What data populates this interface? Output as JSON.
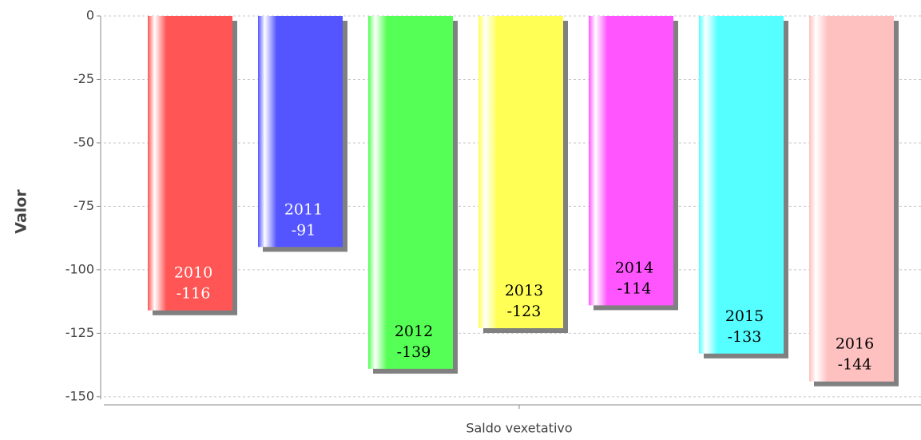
{
  "chart_data": {
    "type": "bar",
    "categories": [
      "Saldo vexetativo"
    ],
    "y_label": "Valor",
    "series": [
      {
        "name": "2010",
        "color": "#ff5555",
        "label_color": "#ffffff",
        "values": [
          -116
        ]
      },
      {
        "name": "2011",
        "color": "#5555ff",
        "label_color": "#ffffff",
        "values": [
          -91
        ]
      },
      {
        "name": "2012",
        "color": "#55ff55",
        "label_color": "#000000",
        "values": [
          -139
        ]
      },
      {
        "name": "2013",
        "color": "#ffff55",
        "label_color": "#000000",
        "values": [
          -123
        ]
      },
      {
        "name": "2014",
        "color": "#ff55ff",
        "label_color": "#000000",
        "values": [
          -114
        ]
      },
      {
        "name": "2015",
        "color": "#55ffff",
        "label_color": "#000000",
        "values": [
          -133
        ]
      },
      {
        "name": "2016",
        "color": "#ffc0c0",
        "label_color": "#000000",
        "values": [
          -144
        ]
      }
    ],
    "ylim": [
      -151,
      0
    ],
    "yticks": [
      0,
      -25,
      -50,
      -75,
      -100,
      -125,
      -150
    ],
    "grid": true
  }
}
